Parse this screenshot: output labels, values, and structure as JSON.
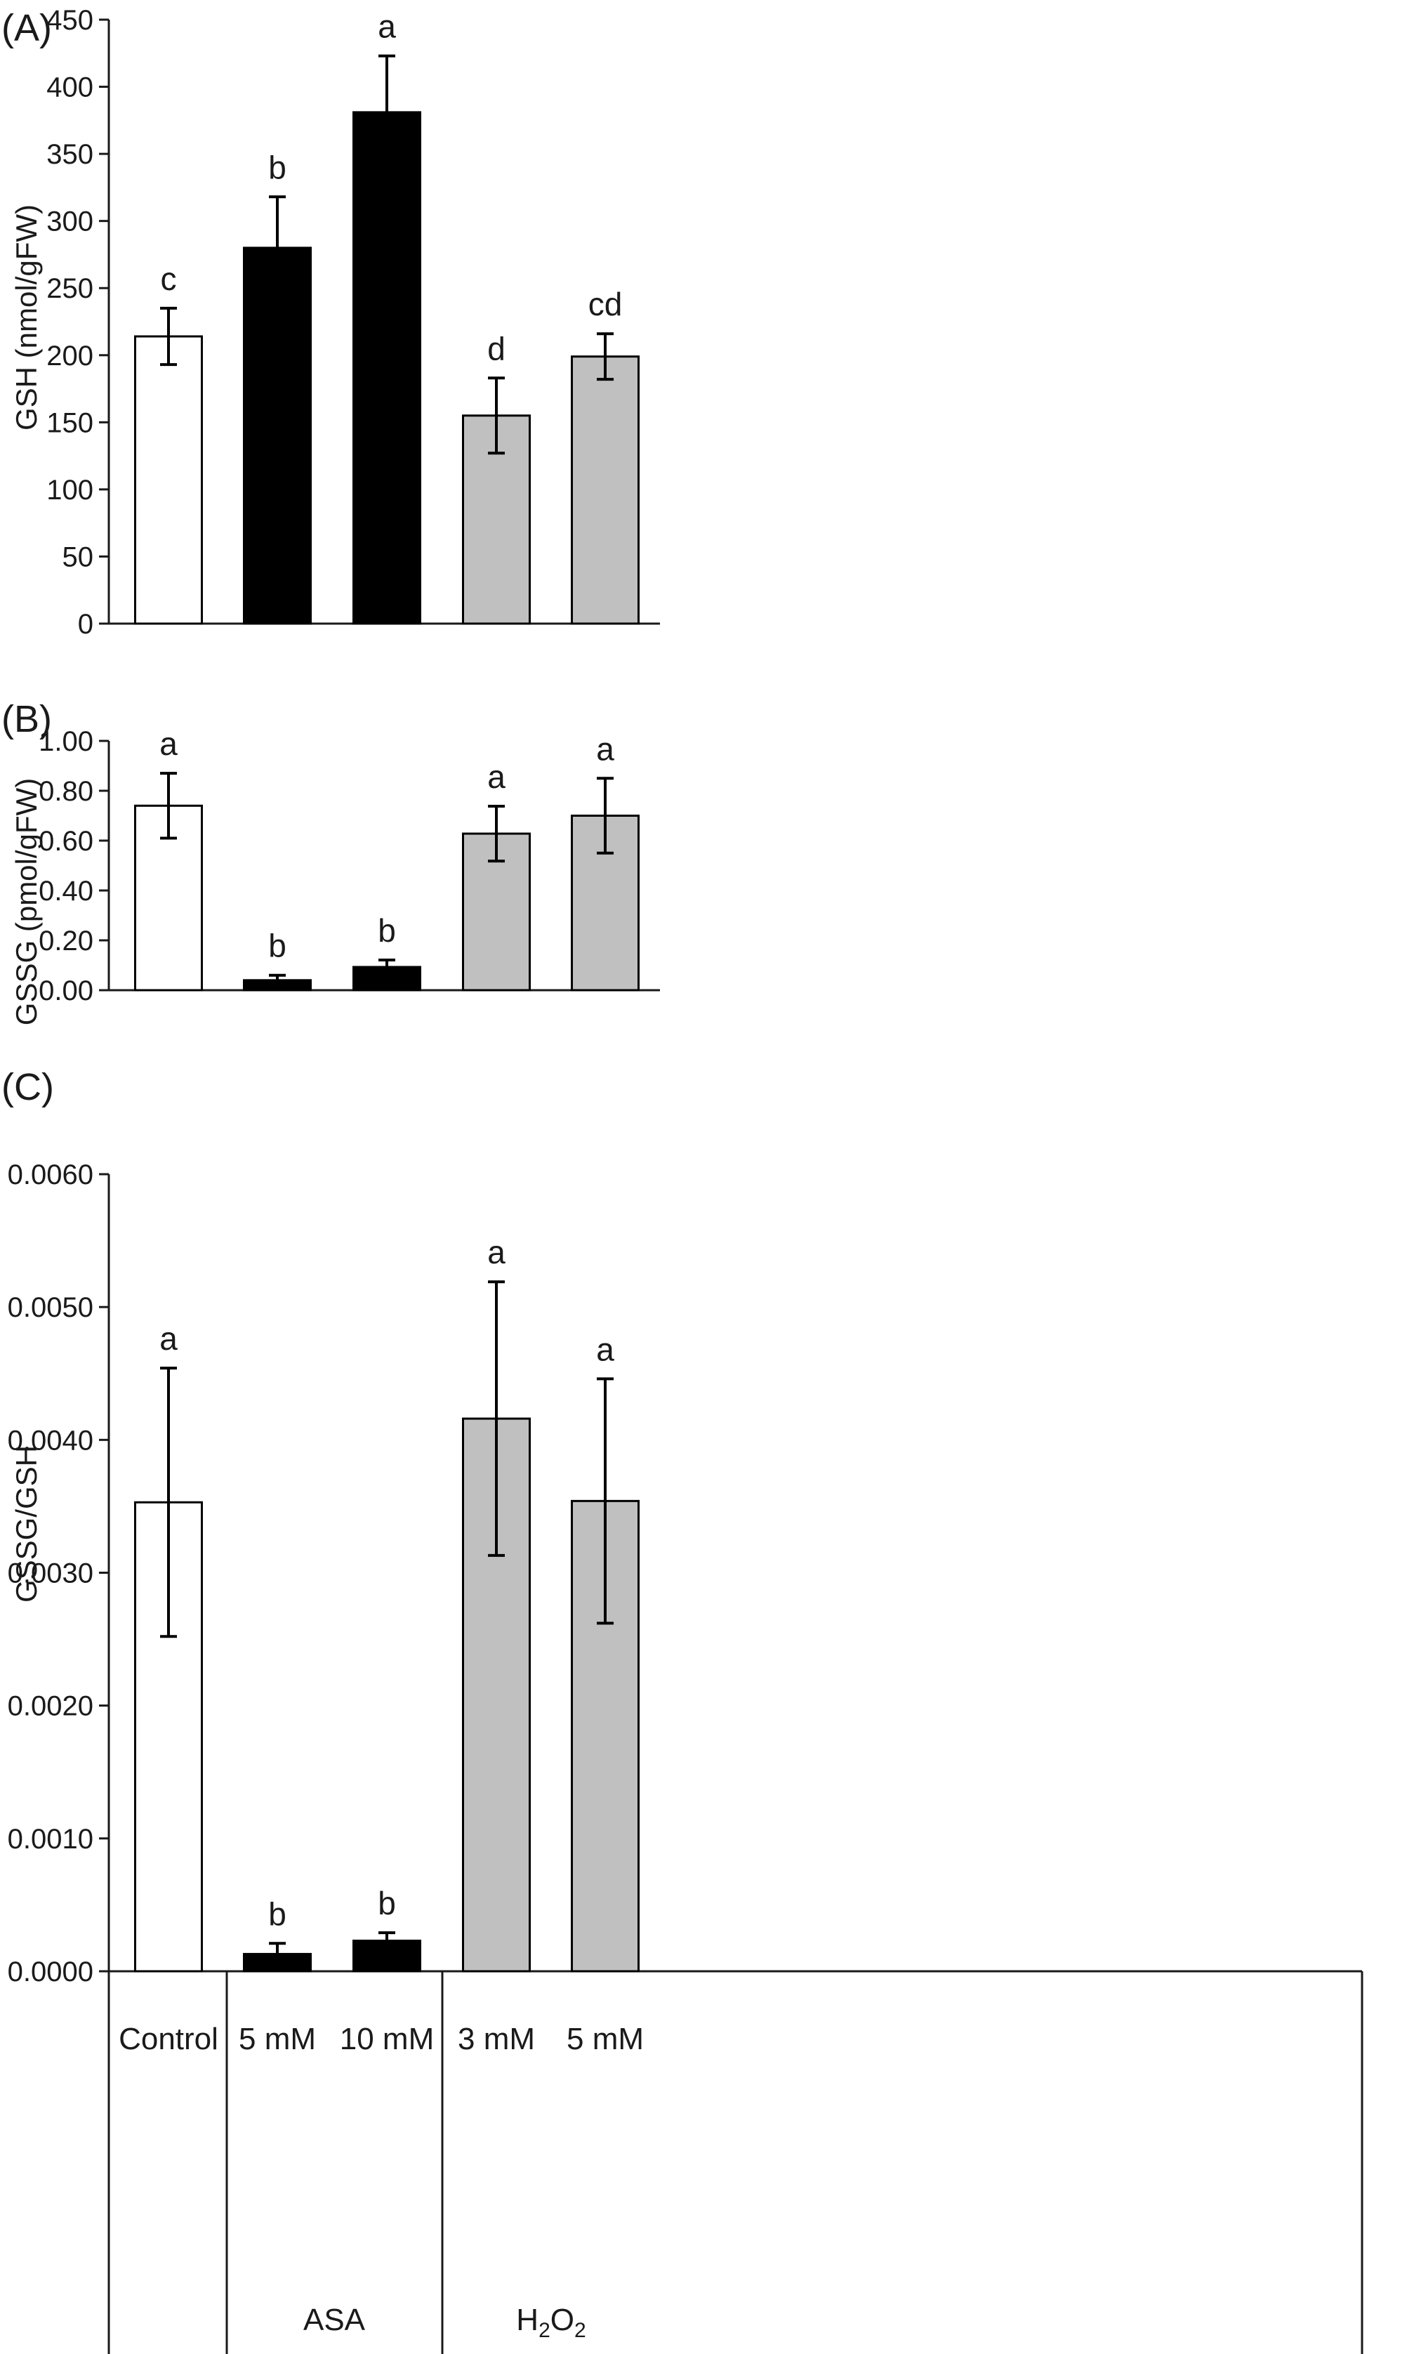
{
  "chart_data": [
    {
      "type": "bar",
      "panel_label": "(A)",
      "ylabel": "GSH (nmol/gFW)",
      "ylim": [
        0,
        450
      ],
      "yticks": [
        "0",
        "50",
        "100",
        "150",
        "200",
        "250",
        "300",
        "350",
        "400",
        "450"
      ],
      "categories": [
        "Control",
        "5 mM",
        "10 mM",
        "3 mM",
        "5 mM"
      ],
      "groups": [
        "",
        "ASA",
        "ASA",
        "H2O2",
        "H2O2"
      ],
      "bar_colors": [
        "#ffffff",
        "#000000",
        "#000000",
        "#c0c0c0",
        "#c0c0c0"
      ],
      "values": [
        214,
        280,
        381,
        155,
        199
      ],
      "errors": [
        21,
        38,
        42,
        28,
        17
      ],
      "letters": [
        "c",
        "b",
        "a",
        "d",
        "cd"
      ]
    },
    {
      "type": "bar",
      "panel_label": "(B)",
      "ylabel": "GSSG (pmol/gFW)",
      "ylim": [
        0,
        1
      ],
      "yticks": [
        "0.00",
        "0.20",
        "0.40",
        "0.60",
        "0.80",
        "1.00"
      ],
      "categories": [
        "Control",
        "5 mM",
        "10 mM",
        "3 mM",
        "5 mM"
      ],
      "groups": [
        "",
        "ASA",
        "ASA",
        "H2O2",
        "H2O2"
      ],
      "bar_colors": [
        "#ffffff",
        "#000000",
        "#000000",
        "#c0c0c0",
        "#c0c0c0"
      ],
      "values": [
        0.74,
        0.04,
        0.093,
        0.628,
        0.7
      ],
      "errors": [
        0.13,
        0.02,
        0.028,
        0.11,
        0.15
      ],
      "letters": [
        "a",
        "b",
        "b",
        "a",
        "a"
      ]
    },
    {
      "type": "bar",
      "panel_label": "(C)",
      "ylabel": "GSSG/GSH",
      "ylim": [
        0,
        0.006
      ],
      "yticks": [
        "0.0000",
        "0.0010",
        "0.0020",
        "0.0030",
        "0.0040",
        "0.0050",
        "0.0060"
      ],
      "categories": [
        "Control",
        "5 mM",
        "10 mM",
        "3 mM",
        "5 mM"
      ],
      "groups": [
        "",
        "ASA",
        "ASA",
        "H2O2",
        "H2O2"
      ],
      "bar_colors": [
        "#ffffff",
        "#000000",
        "#000000",
        "#c0c0c0",
        "#c0c0c0"
      ],
      "values": [
        0.00353,
        0.00013,
        0.00023,
        0.00416,
        0.00354
      ],
      "errors": [
        0.00101,
        8e-05,
        6e-05,
        0.00103,
        0.00092
      ],
      "letters": [
        "a",
        "b",
        "b",
        "a",
        "a"
      ]
    }
  ],
  "x_axis": {
    "categories": [
      "Control",
      "5 mM",
      "10 mM",
      "3 mM",
      "5 mM"
    ],
    "group_labels": {
      "asa": "ASA",
      "h2o2": {
        "base": "H",
        "sub1": "2",
        "mid": "O",
        "sub2": "2"
      }
    }
  }
}
